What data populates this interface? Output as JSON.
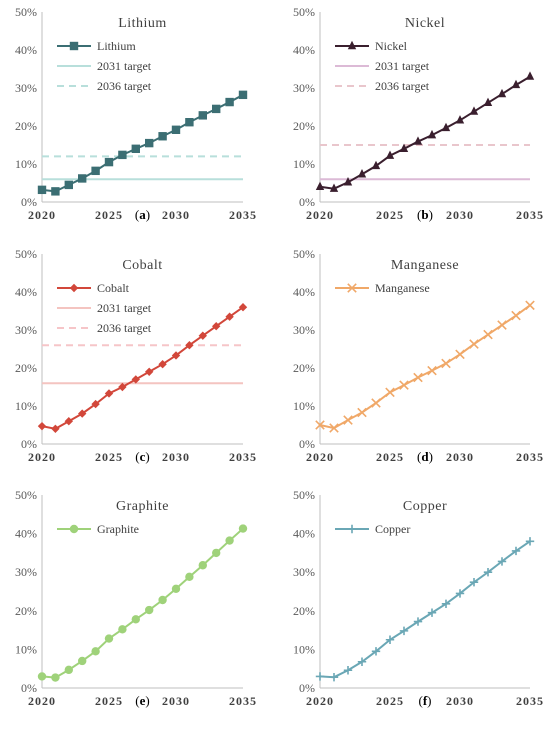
{
  "chart_data": [
    {
      "type": "line",
      "title": "Lithium",
      "caption_letter": "a",
      "x": [
        2020,
        2021,
        2022,
        2023,
        2024,
        2025,
        2026,
        2027,
        2028,
        2029,
        2030,
        2031,
        2032,
        2033,
        2034,
        2035
      ],
      "xticks": [
        "2020",
        "2025",
        "2030",
        "2035"
      ],
      "yticks": [
        "0%",
        "10%",
        "20%",
        "30%",
        "40%",
        "50%"
      ],
      "ylim": [
        0,
        50
      ],
      "series": [
        {
          "name": "Lithium",
          "color": "#3b6e73",
          "marker": "square",
          "values": [
            3.2,
            2.8,
            4.5,
            6.2,
            8.2,
            10.5,
            12.4,
            14.0,
            15.5,
            17.3,
            19.0,
            21.0,
            22.8,
            24.5,
            26.3,
            28.2
          ]
        }
      ],
      "targets": [
        {
          "name": "2031 target",
          "value": 6,
          "style": "solid",
          "color": "#b8dfdb"
        },
        {
          "name": "2036 target",
          "value": 12,
          "style": "dashed",
          "color": "#b8dfdb"
        }
      ]
    },
    {
      "type": "line",
      "title": "Nickel",
      "caption_letter": "b",
      "x": [
        2020,
        2021,
        2022,
        2023,
        2024,
        2025,
        2026,
        2027,
        2028,
        2029,
        2030,
        2031,
        2032,
        2033,
        2034,
        2035
      ],
      "xticks": [
        "2020",
        "2025",
        "2030",
        "2035"
      ],
      "yticks": [
        "0%",
        "10%",
        "20%",
        "30%",
        "40%",
        "50%"
      ],
      "ylim": [
        0,
        50
      ],
      "series": [
        {
          "name": "Nickel",
          "color": "#3a1f2e",
          "marker": "triangle",
          "values": [
            4.0,
            3.5,
            5.2,
            7.3,
            9.5,
            12.2,
            14.0,
            15.9,
            17.6,
            19.5,
            21.5,
            23.8,
            26.1,
            28.4,
            30.8,
            33.0
          ]
        }
      ],
      "targets": [
        {
          "name": "2031 target",
          "value": 6,
          "style": "solid",
          "color": "#dcbad6"
        },
        {
          "name": "2036 target",
          "value": 15,
          "style": "dashed",
          "color": "#e9c6cc"
        }
      ]
    },
    {
      "type": "line",
      "title": "Cobalt",
      "caption_letter": "c",
      "x": [
        2020,
        2021,
        2022,
        2023,
        2024,
        2025,
        2026,
        2027,
        2028,
        2029,
        2030,
        2031,
        2032,
        2033,
        2034,
        2035
      ],
      "xticks": [
        "2020",
        "2025",
        "2030",
        "2035"
      ],
      "yticks": [
        "0%",
        "10%",
        "20%",
        "30%",
        "40%",
        "50%"
      ],
      "ylim": [
        0,
        50
      ],
      "series": [
        {
          "name": "Cobalt",
          "color": "#d2473a",
          "marker": "diamond",
          "values": [
            4.7,
            4.0,
            6.0,
            8.0,
            10.5,
            13.3,
            15.0,
            17.0,
            19.0,
            21.0,
            23.3,
            26.0,
            28.5,
            31.0,
            33.5,
            36.0
          ]
        }
      ],
      "targets": [
        {
          "name": "2031 target",
          "value": 16,
          "style": "solid",
          "color": "#f4c4c0"
        },
        {
          "name": "2036 target",
          "value": 26,
          "style": "dashed",
          "color": "#f6c5c8"
        }
      ]
    },
    {
      "type": "line",
      "title": "Manganese",
      "caption_letter": "d",
      "x": [
        2020,
        2021,
        2022,
        2023,
        2024,
        2025,
        2026,
        2027,
        2028,
        2029,
        2030,
        2031,
        2032,
        2033,
        2034,
        2035
      ],
      "xticks": [
        "2020",
        "2025",
        "2030",
        "2035"
      ],
      "yticks": [
        "0%",
        "10%",
        "20%",
        "30%",
        "40%",
        "50%"
      ],
      "ylim": [
        0,
        50
      ],
      "series": [
        {
          "name": "Manganese",
          "color": "#f0a868",
          "marker": "x",
          "values": [
            5.0,
            4.2,
            6.3,
            8.3,
            10.8,
            13.6,
            15.5,
            17.5,
            19.3,
            21.2,
            23.6,
            26.3,
            28.8,
            31.3,
            33.8,
            36.5
          ]
        }
      ],
      "targets": []
    },
    {
      "type": "line",
      "title": "Graphite",
      "caption_letter": "e",
      "x": [
        2020,
        2021,
        2022,
        2023,
        2024,
        2025,
        2026,
        2027,
        2028,
        2029,
        2030,
        2031,
        2032,
        2033,
        2034,
        2035
      ],
      "xticks": [
        "2020",
        "2025",
        "2030",
        "2035"
      ],
      "yticks": [
        "0%",
        "10%",
        "20%",
        "30%",
        "40%",
        "50%"
      ],
      "ylim": [
        0,
        50
      ],
      "series": [
        {
          "name": "Graphite",
          "color": "#9fd27a",
          "marker": "circle",
          "values": [
            3.0,
            2.7,
            4.7,
            7.0,
            9.5,
            12.8,
            15.2,
            17.8,
            20.2,
            22.8,
            25.7,
            28.8,
            31.8,
            35.0,
            38.2,
            41.3
          ]
        }
      ],
      "targets": []
    },
    {
      "type": "line",
      "title": "Copper",
      "caption_letter": "f",
      "x": [
        2020,
        2021,
        2022,
        2023,
        2024,
        2025,
        2026,
        2027,
        2028,
        2029,
        2030,
        2031,
        2032,
        2033,
        2034,
        2035
      ],
      "xticks": [
        "2020",
        "2025",
        "2030",
        "2035"
      ],
      "yticks": [
        "0%",
        "10%",
        "20%",
        "30%",
        "40%",
        "50%"
      ],
      "ylim": [
        0,
        50
      ],
      "series": [
        {
          "name": "Copper",
          "color": "#6aa7b5",
          "marker": "plus",
          "values": [
            3.0,
            2.8,
            4.6,
            6.8,
            9.5,
            12.5,
            14.8,
            17.2,
            19.5,
            21.8,
            24.5,
            27.4,
            30.0,
            32.8,
            35.5,
            38.0
          ]
        }
      ],
      "targets": []
    }
  ]
}
